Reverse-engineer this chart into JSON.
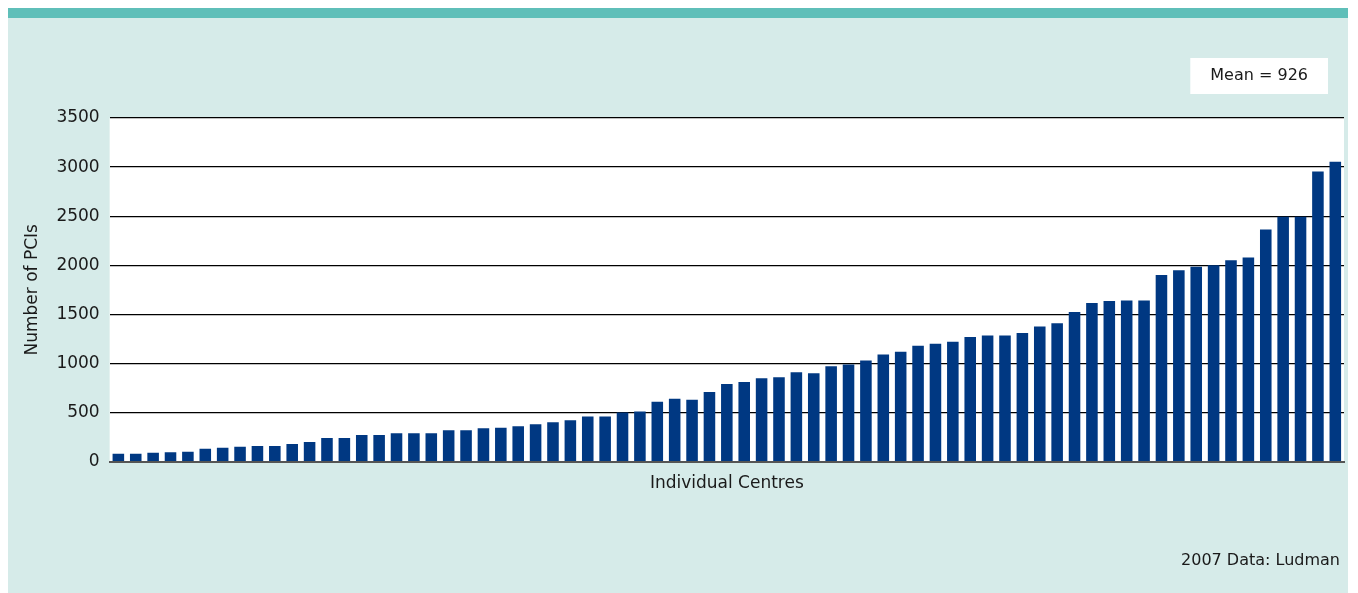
{
  "chart_data": {
    "type": "bar",
    "xlabel": "Individual Centres",
    "ylabel": "Number of PCIs",
    "categories": [
      null,
      null,
      null,
      null,
      null,
      null,
      null,
      null,
      null,
      null,
      null,
      null,
      null,
      null,
      null,
      null,
      null,
      null,
      null,
      null,
      null,
      null,
      null,
      null,
      null,
      null,
      null,
      null,
      null,
      null,
      null,
      null,
      null,
      null,
      null,
      null,
      null,
      null,
      null,
      null,
      null,
      null,
      null,
      null,
      null,
      null,
      null,
      null,
      null,
      null,
      null,
      null,
      null,
      null,
      null,
      null,
      null,
      null,
      null,
      null,
      null,
      null,
      null,
      null,
      null,
      null,
      null,
      null,
      null,
      null,
      null
    ],
    "values": [
      80,
      80,
      90,
      95,
      100,
      130,
      140,
      150,
      160,
      160,
      180,
      200,
      240,
      240,
      270,
      270,
      290,
      290,
      290,
      320,
      320,
      340,
      345,
      360,
      380,
      400,
      420,
      460,
      460,
      500,
      510,
      610,
      640,
      630,
      710,
      790,
      810,
      850,
      860,
      910,
      900,
      970,
      990,
      1030,
      1090,
      1120,
      1180,
      1200,
      1220,
      1270,
      1285,
      1285,
      1310,
      1375,
      1410,
      1525,
      1615,
      1635,
      1640,
      1640,
      1900,
      1950,
      1985,
      2000,
      2050,
      2080,
      2365,
      2495,
      2495,
      2955,
      3055
    ],
    "color": "#003882",
    "ylim": [
      0,
      3500
    ],
    "yticks": [
      0,
      500,
      1000,
      1500,
      2000,
      2500,
      3000,
      3500
    ],
    "grid": "y",
    "annotations": [
      "Mean = 926",
      "2007 Data: Ludman"
    ]
  }
}
